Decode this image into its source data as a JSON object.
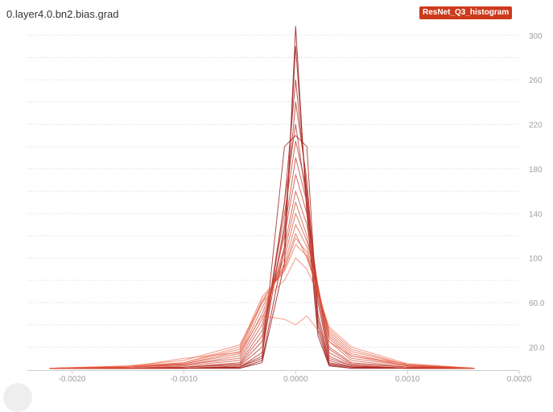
{
  "card": {
    "tag": "0.layer4.0.bn2.bias.grad",
    "run": "ResNet_Q3_histogram"
  },
  "colors": {
    "latest": "#f15a3a",
    "oldest": "#9a1c1c",
    "badge": "#cc3a1c",
    "grid": "#dddddd",
    "axis": "#9e9e9e"
  },
  "chart_data": {
    "type": "line",
    "mode": "histogram-overlay",
    "title": "0.layer4.0.bn2.bias.grad",
    "xlabel": "",
    "ylabel": "",
    "xlim": [
      -0.0024,
      0.002
    ],
    "ylim": [
      0,
      310
    ],
    "x_ticks": [
      -0.002,
      -0.001,
      0.0,
      0.001,
      0.002
    ],
    "x_tick_labels": [
      "-0.0020",
      "-0.0010",
      "0.0000",
      "0.0010",
      "0.0020"
    ],
    "y_ticks": [
      20,
      60,
      100,
      140,
      180,
      220,
      260,
      300
    ],
    "y_tick_labels": [
      "20.0",
      "60.0",
      "100",
      "140",
      "180",
      "220",
      "260",
      "300"
    ],
    "grid": true,
    "series": [
      {
        "x": [
          -0.0022,
          -0.0015,
          -0.001,
          -0.0005,
          -0.0003,
          -0.0001,
          0.0,
          0.0001,
          0.0002,
          0.0003,
          0.0005,
          0.001,
          0.0016
        ],
        "y": [
          1,
          1,
          1,
          1,
          6,
          95,
          308,
          140,
          30,
          3,
          1,
          1,
          1
        ]
      },
      {
        "x": [
          -0.0022,
          -0.0015,
          -0.001,
          -0.0005,
          -0.0003,
          -0.0001,
          0.0,
          0.0001,
          0.0002,
          0.0003,
          0.0005,
          0.001,
          0.0016
        ],
        "y": [
          1,
          1,
          1,
          1,
          8,
          110,
          290,
          150,
          35,
          4,
          1,
          1,
          1
        ]
      },
      {
        "x": [
          -0.0022,
          -0.0015,
          -0.001,
          -0.0005,
          -0.0003,
          -0.0001,
          0.0,
          0.0001,
          0.0002,
          0.0003,
          0.0005,
          0.001,
          0.0016
        ],
        "y": [
          1,
          1,
          1,
          2,
          10,
          200,
          210,
          200,
          40,
          5,
          2,
          1,
          1
        ]
      },
      {
        "x": [
          -0.0022,
          -0.0015,
          -0.001,
          -0.0005,
          -0.0003,
          -0.0001,
          0.0,
          0.0001,
          0.0002,
          0.0003,
          0.0005,
          0.001,
          0.0016
        ],
        "y": [
          1,
          1,
          1,
          2,
          12,
          150,
          260,
          160,
          45,
          6,
          2,
          1,
          1
        ]
      },
      {
        "x": [
          -0.0022,
          -0.0015,
          -0.001,
          -0.0005,
          -0.0003,
          -0.0001,
          0.0,
          0.0001,
          0.0002,
          0.0003,
          0.0005,
          0.001,
          0.0016
        ],
        "y": [
          1,
          1,
          1,
          2,
          15,
          130,
          240,
          170,
          50,
          8,
          2,
          1,
          1
        ]
      },
      {
        "x": [
          -0.0022,
          -0.0015,
          -0.001,
          -0.0005,
          -0.0003,
          -0.0001,
          0.0,
          0.0001,
          0.0002,
          0.0003,
          0.0005,
          0.001,
          0.0016
        ],
        "y": [
          1,
          1,
          1,
          3,
          20,
          150,
          220,
          150,
          60,
          10,
          3,
          1,
          1
        ]
      },
      {
        "x": [
          -0.0022,
          -0.0015,
          -0.001,
          -0.0005,
          -0.0003,
          -0.0001,
          0.0,
          0.0001,
          0.0002,
          0.0003,
          0.0005,
          0.001,
          0.0016
        ],
        "y": [
          1,
          1,
          2,
          4,
          25,
          140,
          205,
          160,
          65,
          12,
          3,
          1,
          1
        ]
      },
      {
        "x": [
          -0.0022,
          -0.0015,
          -0.001,
          -0.0005,
          -0.0003,
          -0.0001,
          0.0,
          0.0001,
          0.0002,
          0.0003,
          0.0005,
          0.001,
          0.0016
        ],
        "y": [
          1,
          1,
          2,
          5,
          30,
          125,
          190,
          150,
          70,
          15,
          4,
          1,
          1
        ]
      },
      {
        "x": [
          -0.0022,
          -0.0015,
          -0.001,
          -0.0005,
          -0.0003,
          -0.0001,
          0.0,
          0.0001,
          0.0002,
          0.0003,
          0.0005,
          0.001,
          0.0016
        ],
        "y": [
          1,
          1,
          2,
          6,
          35,
          120,
          175,
          140,
          75,
          18,
          5,
          2,
          1
        ]
      },
      {
        "x": [
          -0.0022,
          -0.0015,
          -0.001,
          -0.0005,
          -0.0003,
          -0.0001,
          0.0,
          0.0001,
          0.0002,
          0.0003,
          0.0005,
          0.001,
          0.0016
        ],
        "y": [
          1,
          1,
          3,
          8,
          40,
          110,
          160,
          130,
          70,
          20,
          6,
          2,
          1
        ]
      },
      {
        "x": [
          -0.0022,
          -0.0015,
          -0.001,
          -0.0005,
          -0.0003,
          -0.0001,
          0.0,
          0.0001,
          0.0002,
          0.0003,
          0.0005,
          0.001,
          0.0016
        ],
        "y": [
          1,
          2,
          4,
          10,
          45,
          105,
          150,
          120,
          72,
          25,
          8,
          2,
          1
        ]
      },
      {
        "x": [
          -0.0022,
          -0.0015,
          -0.001,
          -0.0005,
          -0.0003,
          -0.0001,
          0.0,
          0.0001,
          0.0002,
          0.0003,
          0.0005,
          0.001,
          0.0016
        ],
        "y": [
          1,
          2,
          4,
          12,
          50,
          100,
          140,
          115,
          75,
          28,
          10,
          3,
          1
        ]
      },
      {
        "x": [
          -0.0022,
          -0.0015,
          -0.001,
          -0.0005,
          -0.0003,
          -0.0001,
          0.0,
          0.0001,
          0.0002,
          0.0003,
          0.0005,
          0.001,
          0.0016
        ],
        "y": [
          1,
          2,
          5,
          14,
          55,
          95,
          130,
          110,
          70,
          30,
          12,
          3,
          1
        ]
      },
      {
        "x": [
          -0.0022,
          -0.0015,
          -0.001,
          -0.0005,
          -0.0003,
          -0.0001,
          0.0,
          0.0001,
          0.0002,
          0.0003,
          0.0005,
          0.001,
          0.0016
        ],
        "y": [
          1,
          2,
          5,
          16,
          60,
          92,
          122,
          100,
          72,
          32,
          14,
          3,
          1
        ]
      },
      {
        "x": [
          -0.0022,
          -0.0015,
          -0.001,
          -0.0005,
          -0.0003,
          -0.0001,
          0.0,
          0.0001,
          0.0002,
          0.0003,
          0.0005,
          0.001,
          0.0016
        ],
        "y": [
          1,
          2,
          6,
          18,
          62,
          90,
          118,
          105,
          68,
          34,
          16,
          4,
          1
        ]
      },
      {
        "x": [
          -0.0022,
          -0.0015,
          -0.001,
          -0.0005,
          -0.0003,
          -0.0001,
          0.0,
          0.0001,
          0.0002,
          0.0003,
          0.0005,
          0.001,
          0.0016
        ],
        "y": [
          1,
          3,
          6,
          20,
          65,
          88,
          112,
          102,
          70,
          36,
          18,
          4,
          1
        ]
      },
      {
        "x": [
          -0.0022,
          -0.0015,
          -0.001,
          -0.0005,
          -0.0003,
          -0.0001,
          0.0,
          0.0001,
          0.0002,
          0.0003,
          0.0005,
          0.001,
          0.0016
        ],
        "y": [
          1,
          3,
          8,
          22,
          60,
          80,
          100,
          90,
          68,
          38,
          20,
          5,
          1
        ]
      },
      {
        "x": [
          -0.0022,
          -0.0015,
          -0.001,
          -0.0005,
          -0.0003,
          -0.0001,
          0.0,
          0.0001,
          0.0002,
          0.0003,
          0.0005,
          0.001,
          0.0016
        ],
        "y": [
          1,
          2,
          10,
          15,
          48,
          45,
          40,
          48,
          35,
          25,
          12,
          5,
          1
        ]
      }
    ]
  }
}
